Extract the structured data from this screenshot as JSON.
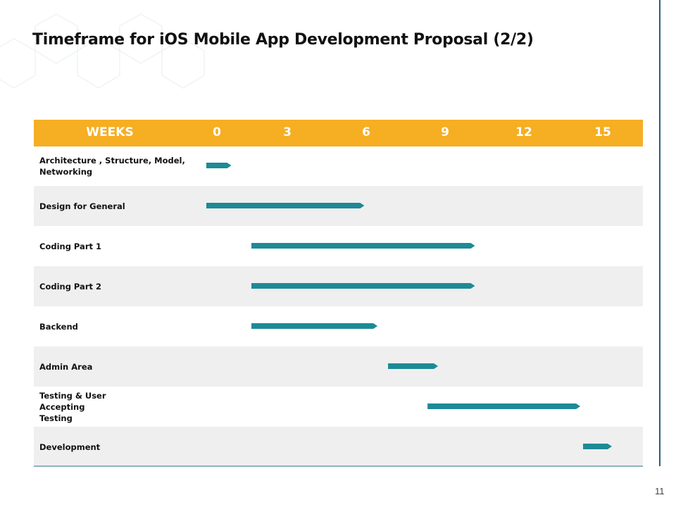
{
  "title": "Timeframe for iOS Mobile App Development Proposal (2/2)",
  "page_number": "11",
  "chart_data": {
    "type": "gantt",
    "header_label": "WEEKS",
    "ticks": [
      "0",
      "3",
      "6",
      "9",
      "12",
      "15"
    ],
    "xlim": [
      0,
      15.5
    ],
    "bar_color": "#1e8a96",
    "header_color": "#f6ae22",
    "tasks": [
      {
        "name": "Architecture , Structure, Model, Networking",
        "start": 0,
        "end": 0.95
      },
      {
        "name": "Design for General",
        "start": 0,
        "end": 6
      },
      {
        "name": "Coding Part 1",
        "start": 1.7,
        "end": 10.2
      },
      {
        "name": "Coding Part 2",
        "start": 1.7,
        "end": 10.2
      },
      {
        "name": "Backend",
        "start": 1.7,
        "end": 6.5
      },
      {
        "name": "Admin Area",
        "start": 6.9,
        "end": 8.8
      },
      {
        "name": "Testing & User Accepting Testing",
        "start": 8.4,
        "end": 14.2
      },
      {
        "name": "Development",
        "start": 14.3,
        "end": 15.4
      }
    ]
  }
}
